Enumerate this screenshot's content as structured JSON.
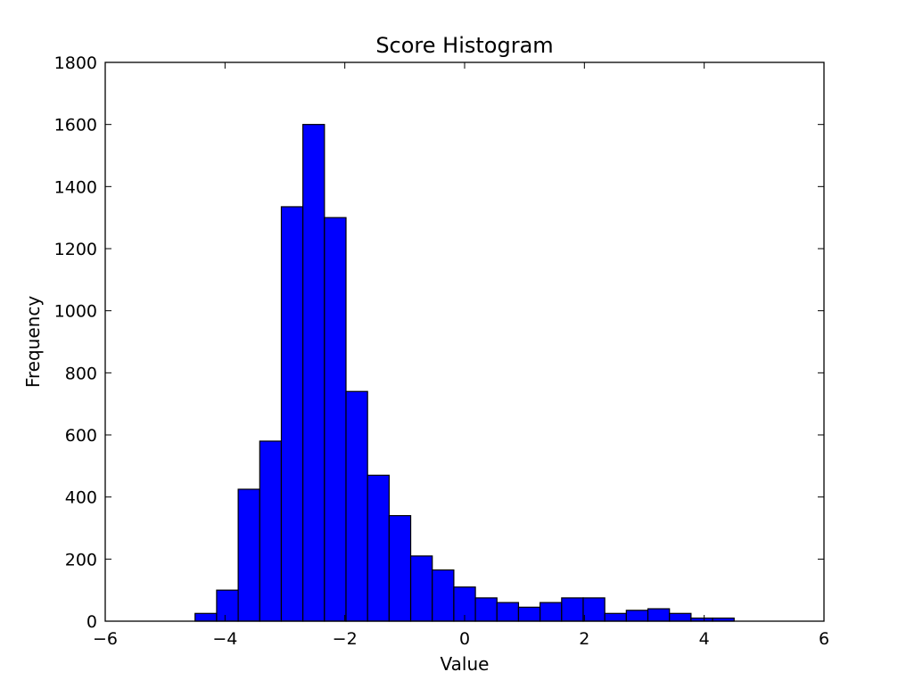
{
  "chart_data": {
    "type": "bar",
    "title": "Score Histogram",
    "xlabel": "Value",
    "ylabel": "Frequency",
    "xlim": [
      -6,
      6
    ],
    "ylim": [
      0,
      1800
    ],
    "xticks": [
      -6,
      -4,
      -2,
      0,
      2,
      4,
      6
    ],
    "xtick_labels": [
      "−6",
      "−4",
      "−2",
      "0",
      "2",
      "4",
      "6"
    ],
    "yticks": [
      0,
      200,
      400,
      600,
      800,
      1000,
      1200,
      1400,
      1600,
      1800
    ],
    "ytick_labels": [
      "0",
      "200",
      "400",
      "600",
      "800",
      "1000",
      "1200",
      "1400",
      "1600",
      "1800"
    ],
    "grid": false,
    "bin_edges": [
      -4.5,
      -4.14,
      -3.78,
      -3.42,
      -3.06,
      -2.7,
      -2.34,
      -1.98,
      -1.62,
      -1.26,
      -0.9,
      -0.54,
      -0.18,
      0.18,
      0.54,
      0.9,
      1.26,
      1.62,
      1.98,
      2.34,
      2.7,
      3.06,
      3.42,
      3.78,
      4.14,
      4.5
    ],
    "values": [
      25,
      100,
      425,
      580,
      1335,
      1600,
      1300,
      740,
      470,
      340,
      210,
      165,
      110,
      75,
      60,
      45,
      60,
      75,
      75,
      25,
      35,
      40,
      25,
      10,
      10
    ],
    "colors": {
      "bar_fill": "#0000ff",
      "bar_edge": "#000000",
      "axes": "#000000",
      "background": "#ffffff"
    }
  }
}
